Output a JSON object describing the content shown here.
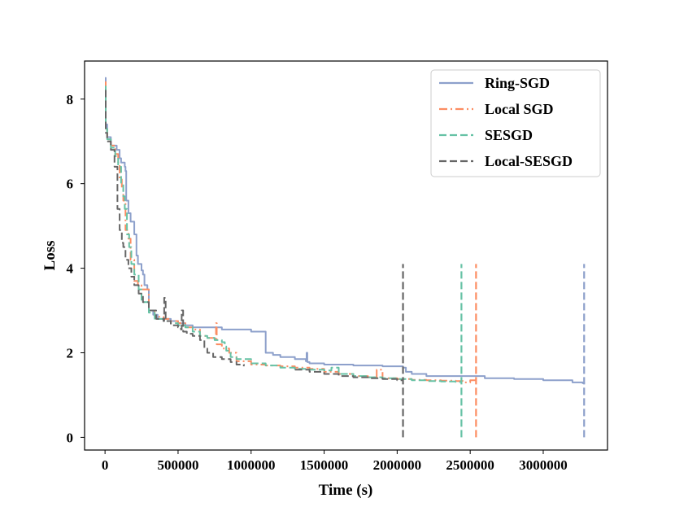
{
  "chart_data": {
    "type": "line",
    "title": "",
    "xlabel": "Time (s)",
    "ylabel": "Loss",
    "xlim": [
      -140000,
      3440000
    ],
    "ylim": [
      -0.3,
      8.9
    ],
    "x_ticks": [
      0,
      500000,
      1000000,
      1500000,
      2000000,
      2500000,
      3000000
    ],
    "x_tick_labels": [
      "0",
      "500000",
      "1000000",
      "1500000",
      "2000000",
      "2500000",
      "3000000"
    ],
    "y_ticks": [
      0,
      2,
      4,
      6,
      8
    ],
    "y_tick_labels": [
      "0",
      "2",
      "4",
      "6",
      "8"
    ],
    "grid": false,
    "legend_position": "top-right",
    "series": [
      {
        "name": "Ring-SGD",
        "color": "#8da0cb",
        "dash": "solid",
        "x": [
          0,
          5000,
          15000,
          40000,
          80000,
          100000,
          110000,
          135000,
          140000,
          145000,
          160000,
          175000,
          200000,
          215000,
          225000,
          250000,
          260000,
          270000,
          290000,
          300000,
          330000,
          360000,
          400000,
          450000,
          500000,
          550000,
          600000,
          700000,
          800000,
          850000,
          900000,
          1000000,
          1080000,
          1100000,
          1150000,
          1200000,
          1300000,
          1375000,
          1380000,
          1385000,
          1400000,
          1500000,
          1700000,
          1900000,
          2040000,
          2060000,
          2100000,
          2200000,
          2400000,
          2600000,
          2800000,
          3000000,
          3200000,
          3270000,
          3280000
        ],
        "y": [
          8.5,
          7.4,
          7.1,
          6.9,
          6.8,
          6.6,
          6.5,
          6.4,
          6.3,
          5.6,
          5.3,
          5.1,
          4.8,
          4.3,
          4.1,
          3.95,
          3.85,
          3.6,
          3.5,
          3.0,
          2.9,
          2.8,
          2.8,
          2.75,
          2.7,
          2.65,
          2.6,
          2.6,
          2.55,
          2.55,
          2.55,
          2.5,
          2.5,
          2.0,
          1.95,
          1.9,
          1.85,
          1.8,
          2.0,
          1.78,
          1.75,
          1.72,
          1.7,
          1.68,
          1.65,
          1.55,
          1.5,
          1.45,
          1.45,
          1.4,
          1.38,
          1.35,
          1.3,
          1.28,
          1.3
        ],
        "final_spike": {
          "x": 3280000,
          "y_from": 0.0,
          "y_to": 4.1
        }
      },
      {
        "name": "Local SGD",
        "color": "#fc8d62",
        "dash": "dashdot",
        "x": [
          0,
          5000,
          15000,
          40000,
          70000,
          90000,
          100000,
          115000,
          125000,
          140000,
          160000,
          175000,
          200000,
          225000,
          250000,
          300000,
          340000,
          400000,
          450000,
          500000,
          550000,
          600000,
          650000,
          700000,
          750000,
          760000,
          765000,
          800000,
          850000,
          900000,
          1000000,
          1100000,
          1200000,
          1300000,
          1400000,
          1500000,
          1600000,
          1700000,
          1800000,
          1850000,
          1860000,
          1900000,
          2000000,
          2100000,
          2200000,
          2300000,
          2400000,
          2450000,
          2500000,
          2540000
        ],
        "y": [
          8.4,
          7.3,
          7.05,
          6.9,
          6.7,
          6.5,
          6.1,
          5.9,
          5.6,
          4.9,
          4.7,
          4.2,
          3.7,
          3.6,
          3.5,
          3.0,
          2.85,
          2.8,
          2.75,
          2.7,
          2.6,
          2.55,
          2.4,
          2.35,
          2.3,
          2.7,
          2.2,
          2.1,
          2.0,
          1.8,
          1.72,
          1.7,
          1.68,
          1.65,
          1.62,
          1.55,
          1.5,
          1.45,
          1.42,
          1.4,
          1.6,
          1.4,
          1.38,
          1.36,
          1.35,
          1.34,
          1.33,
          1.3,
          1.35,
          1.3
        ],
        "final_spike": {
          "x": 2540000,
          "y_from": 0.0,
          "y_to": 4.1
        }
      },
      {
        "name": "SESGD",
        "color": "#66c2a5",
        "dash": "dashed",
        "x": [
          0,
          5000,
          15000,
          40000,
          70000,
          90000,
          110000,
          125000,
          135000,
          150000,
          165000,
          180000,
          200000,
          230000,
          250000,
          300000,
          340000,
          400000,
          450000,
          500000,
          550000,
          600000,
          650000,
          700000,
          750000,
          800000,
          820000,
          830000,
          860000,
          900000,
          1000000,
          1100000,
          1200000,
          1300000,
          1400000,
          1500000,
          1550000,
          1600000,
          1700000,
          1800000,
          1900000,
          2000000,
          2100000,
          2200000,
          2300000,
          2400000,
          2440000
        ],
        "y": [
          8.3,
          7.3,
          7.05,
          6.85,
          6.65,
          6.4,
          6.0,
          5.7,
          5.4,
          4.8,
          4.5,
          4.1,
          3.85,
          3.5,
          3.2,
          2.95,
          2.8,
          2.75,
          2.7,
          2.65,
          2.6,
          2.5,
          2.4,
          2.35,
          2.3,
          2.25,
          2.15,
          2.05,
          1.9,
          1.85,
          1.75,
          1.7,
          1.65,
          1.62,
          1.6,
          1.58,
          1.65,
          1.5,
          1.45,
          1.42,
          1.4,
          1.38,
          1.35,
          1.33,
          1.32,
          1.31,
          1.3
        ],
        "final_spike": {
          "x": 2440000,
          "y_from": 0.0,
          "y_to": 4.1
        }
      },
      {
        "name": "Local-SESGD",
        "color": "#666666",
        "dash": "dashed",
        "x": [
          0,
          5000,
          15000,
          40000,
          65000,
          85000,
          100000,
          115000,
          125000,
          140000,
          160000,
          180000,
          200000,
          230000,
          260000,
          300000,
          350000,
          400000,
          405000,
          415000,
          450000,
          500000,
          520000,
          525000,
          535000,
          560000,
          600000,
          650000,
          680000,
          700000,
          740000,
          800000,
          860000,
          900000,
          950000
        ],
        "y": [
          8.2,
          7.2,
          7.0,
          6.8,
          6.4,
          5.4,
          4.9,
          4.6,
          4.5,
          4.2,
          4.0,
          3.8,
          3.6,
          3.4,
          3.2,
          3.0,
          2.8,
          2.75,
          3.3,
          2.75,
          2.65,
          2.6,
          2.55,
          3.0,
          2.5,
          2.45,
          2.4,
          2.3,
          2.1,
          2.0,
          1.9,
          1.85,
          1.78,
          1.72,
          1.68
        ],
        "continuation": {
          "x": [
            1300000,
            1400000,
            1500000,
            1600000,
            1700000,
            1800000,
            1900000,
            2000000,
            2040000
          ],
          "y": [
            1.6,
            1.55,
            1.5,
            1.45,
            1.42,
            1.4,
            1.38,
            1.35,
            1.3
          ]
        },
        "final_spike": {
          "x": 2040000,
          "y_from": 0.0,
          "y_to": 4.1
        }
      }
    ]
  }
}
